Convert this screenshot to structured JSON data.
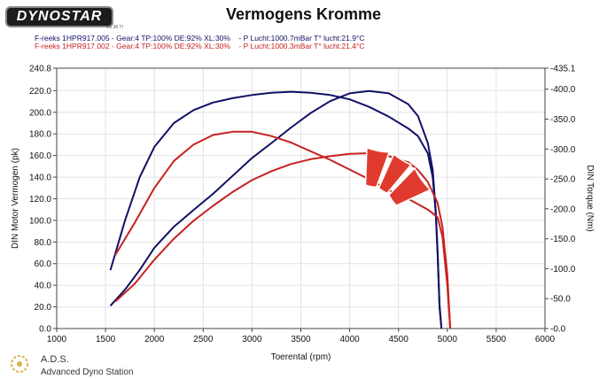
{
  "header": {
    "logo_text": "DYNOSTAR",
    "logo_sub": "v.1.36 TI",
    "title": "Vermogens Kromme"
  },
  "runs": [
    {
      "text": "F-reeks 1HPR917.005 - Gear:4 TP:100% DE:92% XL:30%    - P Lucht:1000.7mBar T° lucht:21.9°C",
      "color": "#111166"
    },
    {
      "text": "F-reeks 1HPR917.002 - Gear:4 TP:100% DE:92% XL:30%    - P Lucht:1000.3mBar T° lucht:21.4°C",
      "color": "#c82020"
    }
  ],
  "footer": {
    "brand": "A.D.S.",
    "subtitle": "Advanced Dyno Station"
  },
  "chart_data": {
    "type": "line",
    "xlabel": "Toerental (rpm)",
    "ylabel": "DIN Motor Vermogen (pk)",
    "y2label": "DIN Torque (Nm)",
    "xlim": [
      1000,
      6000
    ],
    "ylim": [
      0,
      240.8
    ],
    "y2lim": [
      0,
      435.1
    ],
    "x_ticks": [
      "1000",
      "1500",
      "2000",
      "2500",
      "3000",
      "3500",
      "4000",
      "4500",
      "5000",
      "5500",
      "6000"
    ],
    "y_ticks": [
      "0.0",
      "20.0",
      "40.0",
      "60.0",
      "80.0",
      "100.0",
      "120.0",
      "140.0",
      "160.0",
      "180.0",
      "200.0",
      "220.0",
      "240.8"
    ],
    "y2_ticks": [
      "-0.0",
      "-50.0",
      "-100.0",
      "-150.0",
      "-200.0",
      "-250.0",
      "-300.0",
      "-350.0",
      "-400.0",
      "-435.1"
    ],
    "grid": true,
    "series": [
      {
        "name": "F-reeks 1HPR917.005",
        "metric": "power",
        "axis": "left",
        "color": "#111166",
        "points": [
          [
            1550,
            54
          ],
          [
            1700,
            100
          ],
          [
            1850,
            140
          ],
          [
            2000,
            168
          ],
          [
            2200,
            190
          ],
          [
            2400,
            202
          ],
          [
            2600,
            209
          ],
          [
            2800,
            213
          ],
          [
            3000,
            216
          ],
          [
            3200,
            218
          ],
          [
            3400,
            219
          ],
          [
            3600,
            218
          ],
          [
            3800,
            216
          ],
          [
            4000,
            212
          ],
          [
            4200,
            205
          ],
          [
            4400,
            196
          ],
          [
            4600,
            185
          ],
          [
            4700,
            178
          ],
          [
            4800,
            162
          ],
          [
            4850,
            140
          ],
          [
            4880,
            108
          ],
          [
            4900,
            70
          ],
          [
            4920,
            20
          ],
          [
            4940,
            0
          ]
        ]
      },
      {
        "name": "F-reeks 1HPR917.005",
        "metric": "torque",
        "axis": "right",
        "color": "#111166",
        "points": [
          [
            1550,
            38
          ],
          [
            1700,
            65
          ],
          [
            1850,
            98
          ],
          [
            2000,
            135
          ],
          [
            2200,
            170
          ],
          [
            2400,
            198
          ],
          [
            2600,
            225
          ],
          [
            2800,
            255
          ],
          [
            3000,
            285
          ],
          [
            3200,
            310
          ],
          [
            3400,
            336
          ],
          [
            3600,
            360
          ],
          [
            3800,
            380
          ],
          [
            4000,
            393
          ],
          [
            4200,
            397
          ],
          [
            4400,
            393
          ],
          [
            4600,
            375
          ],
          [
            4700,
            355
          ],
          [
            4800,
            310
          ],
          [
            4850,
            265
          ],
          [
            4880,
            200
          ],
          [
            4900,
            130
          ],
          [
            4920,
            40
          ],
          [
            4940,
            0
          ]
        ]
      },
      {
        "name": "F-reeks 1HPR917.002",
        "metric": "power",
        "axis": "left",
        "color": "#c82020",
        "points": [
          [
            1600,
            68
          ],
          [
            1800,
            98
          ],
          [
            2000,
            130
          ],
          [
            2200,
            155
          ],
          [
            2400,
            170
          ],
          [
            2600,
            179
          ],
          [
            2800,
            182
          ],
          [
            3000,
            182
          ],
          [
            3200,
            178
          ],
          [
            3400,
            172
          ],
          [
            3600,
            164
          ],
          [
            3800,
            156
          ],
          [
            4000,
            147
          ],
          [
            4200,
            138
          ],
          [
            4400,
            128
          ],
          [
            4600,
            120
          ],
          [
            4800,
            110
          ],
          [
            4900,
            103
          ],
          [
            4950,
            85
          ],
          [
            5000,
            40
          ],
          [
            5030,
            0
          ]
        ]
      },
      {
        "name": "F-reeks 1HPR917.002",
        "metric": "torque",
        "axis": "right",
        "color": "#c82020",
        "points": [
          [
            1600,
            45
          ],
          [
            1800,
            75
          ],
          [
            2000,
            115
          ],
          [
            2200,
            150
          ],
          [
            2400,
            180
          ],
          [
            2600,
            205
          ],
          [
            2800,
            228
          ],
          [
            3000,
            248
          ],
          [
            3200,
            263
          ],
          [
            3400,
            275
          ],
          [
            3600,
            283
          ],
          [
            3800,
            288
          ],
          [
            4000,
            292
          ],
          [
            4200,
            293
          ],
          [
            4400,
            288
          ],
          [
            4600,
            278
          ],
          [
            4700,
            265
          ],
          [
            4800,
            245
          ],
          [
            4900,
            210
          ],
          [
            4950,
            170
          ],
          [
            5000,
            90
          ],
          [
            5030,
            0
          ]
        ]
      }
    ]
  }
}
